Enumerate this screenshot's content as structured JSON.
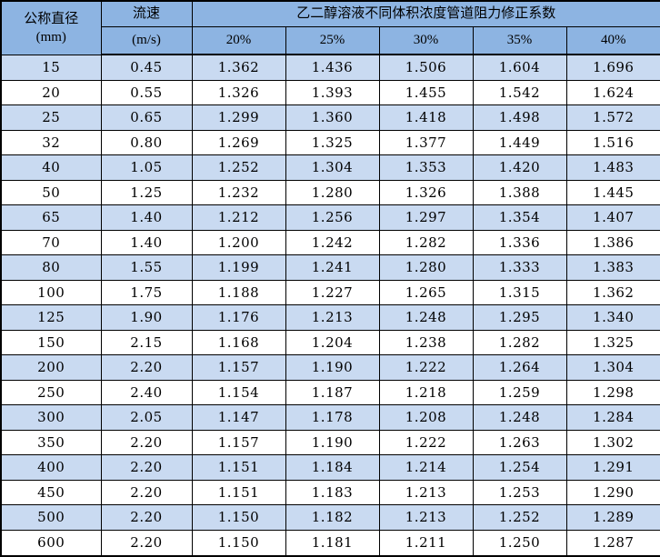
{
  "colors": {
    "header_bg": "#8DB4E2",
    "stripe_bg": "#C9DAF1",
    "border": "#000000",
    "text": "#000000"
  },
  "table": {
    "header": {
      "diameter_line1": "公称直径",
      "diameter_line2": "(mm)",
      "velocity_label": "流速",
      "velocity_unit": "(m/s)",
      "span_title": "乙二醇溶液不同体积浓度管道阻力修正系数",
      "percent_columns": [
        "20%",
        "25%",
        "30%",
        "35%",
        "40%"
      ]
    },
    "rows": [
      [
        "15",
        "0.45",
        "1.362",
        "1.436",
        "1.506",
        "1.604",
        "1.696"
      ],
      [
        "20",
        "0.55",
        "1.326",
        "1.393",
        "1.455",
        "1.542",
        "1.624"
      ],
      [
        "25",
        "0.65",
        "1.299",
        "1.360",
        "1.418",
        "1.498",
        "1.572"
      ],
      [
        "32",
        "0.80",
        "1.269",
        "1.325",
        "1.377",
        "1.449",
        "1.516"
      ],
      [
        "40",
        "1.05",
        "1.252",
        "1.304",
        "1.353",
        "1.420",
        "1.483"
      ],
      [
        "50",
        "1.25",
        "1.232",
        "1.280",
        "1.326",
        "1.388",
        "1.445"
      ],
      [
        "65",
        "1.40",
        "1.212",
        "1.256",
        "1.297",
        "1.354",
        "1.407"
      ],
      [
        "70",
        "1.40",
        "1.200",
        "1.242",
        "1.282",
        "1.336",
        "1.386"
      ],
      [
        "80",
        "1.55",
        "1.199",
        "1.241",
        "1.280",
        "1.333",
        "1.383"
      ],
      [
        "100",
        "1.75",
        "1.188",
        "1.227",
        "1.265",
        "1.315",
        "1.362"
      ],
      [
        "125",
        "1.90",
        "1.176",
        "1.213",
        "1.248",
        "1.295",
        "1.340"
      ],
      [
        "150",
        "2.15",
        "1.168",
        "1.204",
        "1.238",
        "1.282",
        "1.325"
      ],
      [
        "200",
        "2.20",
        "1.157",
        "1.190",
        "1.222",
        "1.264",
        "1.304"
      ],
      [
        "250",
        "2.40",
        "1.154",
        "1.187",
        "1.218",
        "1.259",
        "1.298"
      ],
      [
        "300",
        "2.05",
        "1.147",
        "1.178",
        "1.208",
        "1.248",
        "1.284"
      ],
      [
        "350",
        "2.20",
        "1.157",
        "1.190",
        "1.222",
        "1.263",
        "1.302"
      ],
      [
        "400",
        "2.20",
        "1.151",
        "1.184",
        "1.214",
        "1.254",
        "1.291"
      ],
      [
        "450",
        "2.20",
        "1.151",
        "1.183",
        "1.213",
        "1.253",
        "1.290"
      ],
      [
        "500",
        "2.20",
        "1.150",
        "1.182",
        "1.213",
        "1.252",
        "1.289"
      ],
      [
        "600",
        "2.20",
        "1.150",
        "1.181",
        "1.211",
        "1.250",
        "1.287"
      ]
    ]
  }
}
